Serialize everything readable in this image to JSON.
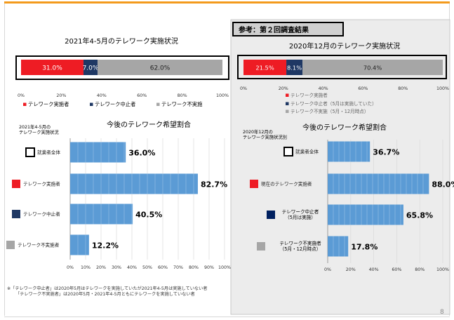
{
  "page_number": "8",
  "footnotes": [
    "※「テレワーク中止者」は2020年5月はテレワークを実施していたが2021年4-5月は実施していない者",
    "「テレワーク不実施者」は2020年5月・2021年4-5月ともにテレワークを実施していない者"
  ],
  "colors": {
    "red": "#ee1c24",
    "navy": "#1f3864",
    "gray": "#a6a6a6",
    "blue": "#5b9bd5",
    "panel": "#ececec"
  },
  "chart_data": [
    {
      "type": "bar",
      "stacked": true,
      "title": "2021年4-5月のテレワーク実施状況",
      "series": [
        {
          "name": "テレワーク実施者",
          "values": [
            31.0
          ],
          "label": "31.0%",
          "color": "#ee1c24"
        },
        {
          "name": "テレワーク中止者",
          "values": [
            7.0
          ],
          "label": "7.0%",
          "color": "#1f3864"
        },
        {
          "name": "テレワーク不実施",
          "values": [
            62.0
          ],
          "label": "62.0%",
          "color": "#a6a6a6"
        }
      ],
      "xticks": [
        "0%",
        "20%",
        "40%",
        "60%",
        "80%",
        "100%"
      ],
      "xlim": [
        0,
        100
      ],
      "legend_position": "bottom"
    },
    {
      "type": "bar",
      "title": "今後のテレワーク希望割合",
      "subtitle": "2021年4-5月の\nテレワーク実施状況",
      "categories": [
        "就業者全体",
        "テレワーク実施者",
        "テレワーク中止者",
        "テレワーク不実施者"
      ],
      "category_colors": [
        "#ffffff",
        "#ee1c24",
        "#1f3864",
        "#a6a6a6"
      ],
      "values": [
        36.0,
        82.7,
        40.5,
        12.2
      ],
      "labels": [
        "36.0%",
        "82.7%",
        "40.5%",
        "12.2%"
      ],
      "xticks": [
        "0%",
        "10%",
        "20%",
        "30%",
        "40%",
        "50%",
        "60%",
        "70%",
        "80%",
        "90%",
        "100%"
      ],
      "xlim": [
        0,
        100
      ]
    },
    {
      "type": "bar",
      "stacked": true,
      "header": "参考：第２回調査結果",
      "title": "2020年12月のテレワーク実施状況",
      "series": [
        {
          "name": "テレワーク実施者",
          "values": [
            21.5
          ],
          "label": "21.5%",
          "color": "#ee1c24"
        },
        {
          "name": "テレワーク中止者（5月は実施していた）",
          "values": [
            8.1
          ],
          "label": "8.1%",
          "color": "#1f3864"
        },
        {
          "name": "テレワーク不実施（5月・12月時点）",
          "values": [
            70.4
          ],
          "label": "70.4%",
          "color": "#a6a6a6"
        }
      ],
      "xticks": [
        "0%",
        "20%",
        "40%",
        "60%",
        "80%",
        "100%"
      ],
      "xlim": [
        0,
        100
      ],
      "legend_position": "bottom"
    },
    {
      "type": "bar",
      "title": "今後のテレワーク希望割合",
      "subtitle": "2020年12月の\nテレワーク実施状況別",
      "categories": [
        "就業者全体",
        "現在のテレワーク実施者",
        "テレワーク中止者\n（5月は実施）",
        "テレワーク不実施者\n（5月・12月時点）"
      ],
      "category_colors": [
        "#ffffff",
        "#ee1c24",
        "#002060",
        "#a6a6a6"
      ],
      "values": [
        36.7,
        88.0,
        65.8,
        17.8
      ],
      "labels": [
        "36.7%",
        "88.0%",
        "65.8%",
        "17.8%"
      ],
      "xticks": [
        "0%",
        "20%",
        "40%",
        "60%",
        "80%",
        "100%"
      ],
      "xlim": [
        0,
        100
      ]
    }
  ]
}
